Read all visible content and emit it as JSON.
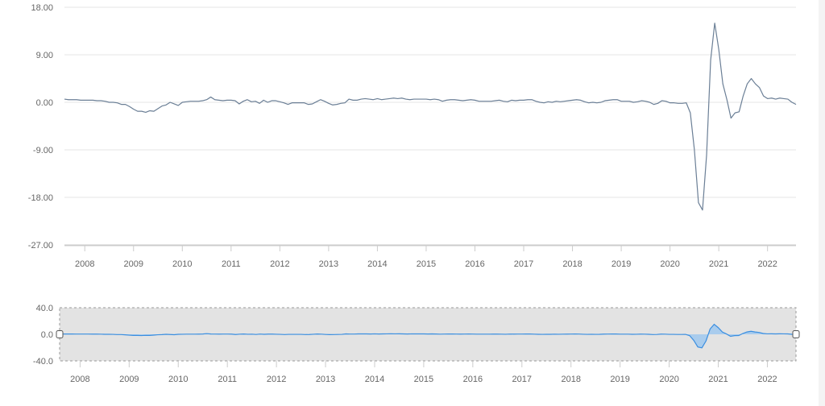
{
  "chart_data": [
    {
      "type": "line",
      "x_start": "2007-08",
      "x_step": "month",
      "x_end": "2022-06",
      "xticks": [
        "2008",
        "2009",
        "2010",
        "2011",
        "2012",
        "2013",
        "2014",
        "2015",
        "2016",
        "2017",
        "2018",
        "2019",
        "2020",
        "2021",
        "2022"
      ],
      "yticks": [
        "18.00",
        "9.00",
        "0.00",
        "-9.00",
        "-18.00",
        "-27.00"
      ],
      "ylim": [
        -27,
        18
      ],
      "grid": true,
      "legend": "none",
      "line_color": "#6b7f96",
      "series": [
        {
          "values": [
            0.6,
            0.5,
            0.5,
            0.5,
            0.4,
            0.4,
            0.4,
            0.4,
            0.3,
            0.3,
            0.2,
            0.0,
            0.0,
            -0.1,
            -0.4,
            -0.4,
            -0.8,
            -1.3,
            -1.7,
            -1.7,
            -1.9,
            -1.6,
            -1.7,
            -1.2,
            -0.7,
            -0.5,
            0.0,
            -0.3,
            -0.6,
            0.0,
            0.1,
            0.2,
            0.2,
            0.2,
            0.3,
            0.5,
            1.0,
            0.5,
            0.4,
            0.3,
            0.4,
            0.4,
            0.3,
            -0.3,
            0.2,
            0.5,
            0.1,
            0.2,
            -0.2,
            0.4,
            0.0,
            0.3,
            0.3,
            0.1,
            -0.1,
            -0.4,
            -0.1,
            -0.1,
            -0.1,
            -0.1,
            -0.4,
            -0.3,
            0.1,
            0.5,
            0.2,
            -0.2,
            -0.5,
            -0.4,
            -0.2,
            -0.1,
            0.6,
            0.4,
            0.4,
            0.6,
            0.7,
            0.6,
            0.5,
            0.7,
            0.5,
            0.6,
            0.7,
            0.8,
            0.7,
            0.8,
            0.6,
            0.5,
            0.6,
            0.6,
            0.6,
            0.6,
            0.5,
            0.6,
            0.5,
            0.2,
            0.4,
            0.5,
            0.5,
            0.4,
            0.3,
            0.4,
            0.5,
            0.4,
            0.2,
            0.2,
            0.2,
            0.2,
            0.3,
            0.4,
            0.2,
            0.1,
            0.4,
            0.3,
            0.4,
            0.4,
            0.5,
            0.5,
            0.2,
            0.0,
            -0.1,
            0.1,
            0.0,
            0.2,
            0.1,
            0.2,
            0.3,
            0.4,
            0.5,
            0.4,
            0.1,
            -0.1,
            0.0,
            -0.1,
            0.0,
            0.3,
            0.4,
            0.5,
            0.5,
            0.2,
            0.2,
            0.2,
            0.0,
            0.1,
            0.3,
            0.2,
            0.0,
            -0.4,
            -0.2,
            0.3,
            0.2,
            -0.1,
            -0.1,
            -0.2,
            -0.2,
            -0.1,
            -2.0,
            -9.0,
            -19.0,
            -20.4,
            -10.0,
            8.0,
            15.0,
            10.0,
            3.5,
            0.5,
            -3.0,
            -2.0,
            -1.8,
            1.2,
            3.5,
            4.5,
            3.5,
            2.8,
            1.2,
            0.7,
            0.8,
            0.6,
            0.8,
            0.7,
            0.6,
            0.0,
            -0.4
          ]
        }
      ]
    },
    {
      "type": "area",
      "xticks": [
        "2008",
        "2009",
        "2010",
        "2011",
        "2012",
        "2013",
        "2014",
        "2015",
        "2016",
        "2017",
        "2018",
        "2019",
        "2020",
        "2021",
        "2022"
      ],
      "yticks": [
        "40.0",
        "0.0",
        "-40.0"
      ],
      "ylim": [
        -40,
        40
      ],
      "grid": false,
      "line_color": "#3a8ee0",
      "fill_color": "#9fc8ef",
      "window_color": "#e3e3e3",
      "series_ref": "same as main series"
    }
  ]
}
